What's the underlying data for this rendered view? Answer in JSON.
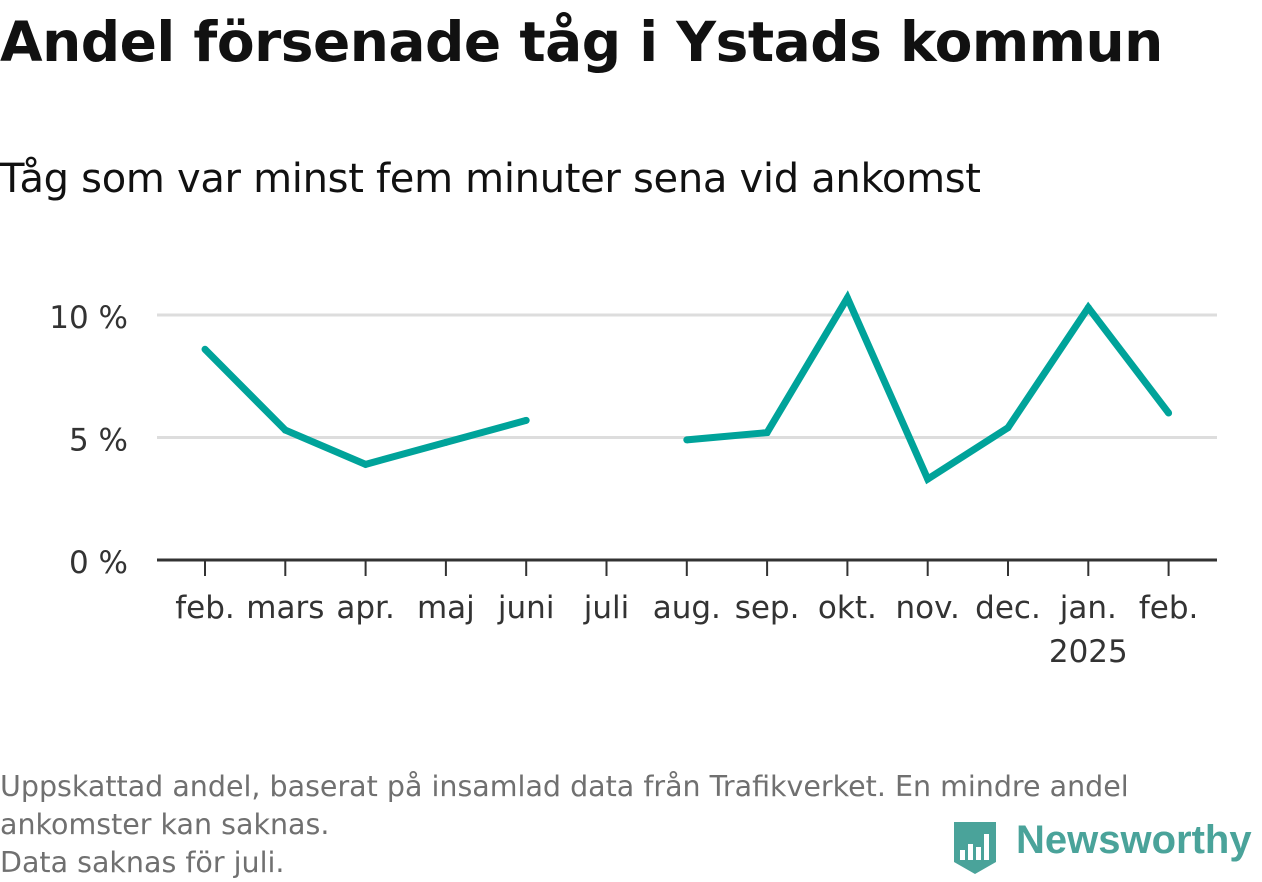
{
  "header": {
    "title": "Andel försenade tåg i Ystads kommun",
    "subtitle": "Tåg som var minst fem minuter sena vid ankomst"
  },
  "footnote": {
    "line1": "Uppskattad andel, baserat på insamlad data från Trafikverket. En mindre andel",
    "line2": "ankomster kan saknas.",
    "line3": "Data saknas för juli."
  },
  "brand": {
    "name": "Newsworthy",
    "icon": "newsworthy-logo-icon",
    "color": "#4aa39a"
  },
  "colors": {
    "line": "#00a39a",
    "grid": "#dddddd",
    "axis": "#333333",
    "text": "#333333"
  },
  "chart_data": {
    "type": "line",
    "categories": [
      "feb.",
      "mars",
      "apr.",
      "maj",
      "juni",
      "juli",
      "aug.",
      "sep.",
      "okt.",
      "nov.",
      "dec.",
      "jan.",
      "feb."
    ],
    "year_label": {
      "index": 11,
      "text": "2025"
    },
    "series": [
      {
        "values": [
          8.6,
          5.3,
          3.9,
          4.8,
          5.7,
          null,
          4.9,
          5.2,
          10.7,
          3.3,
          5.4,
          10.3,
          6.0
        ]
      }
    ],
    "y_ticks": [
      0,
      5,
      10
    ],
    "y_tick_labels": [
      "0 %",
      "5 %",
      "10 %"
    ],
    "ylim": [
      0,
      10
    ],
    "grid": true,
    "legend": "none"
  }
}
